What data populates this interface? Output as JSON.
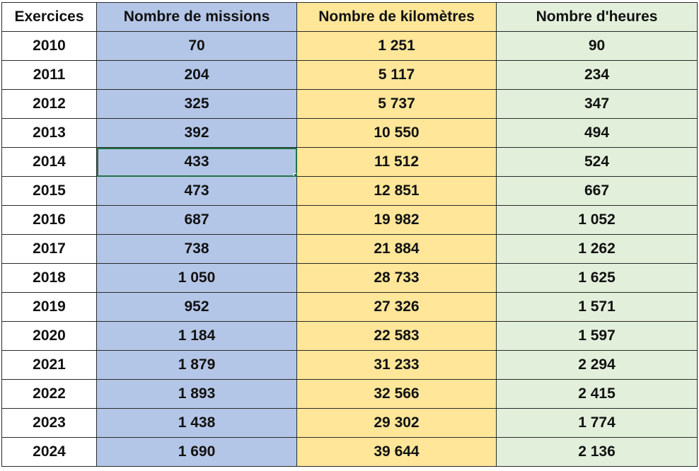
{
  "colors": {
    "missions_fill": "#b4c6e7",
    "km_fill": "#ffe699",
    "hours_fill": "#e2efda",
    "selection_border": "#217346"
  },
  "table": {
    "headers": [
      "Exercices",
      "Nombre de missions",
      "Nombre de kilomètres",
      "Nombre d'heures"
    ],
    "selected_cell": {
      "row": 4,
      "column": "missions"
    },
    "rows": [
      {
        "year": "2010",
        "missions": "70",
        "km": "1 251",
        "hours": "90"
      },
      {
        "year": "2011",
        "missions": "204",
        "km": "5 117",
        "hours": "234"
      },
      {
        "year": "2012",
        "missions": "325",
        "km": "5 737",
        "hours": "347"
      },
      {
        "year": "2013",
        "missions": "392",
        "km": "10 550",
        "hours": "494"
      },
      {
        "year": "2014",
        "missions": "433",
        "km": "11 512",
        "hours": "524"
      },
      {
        "year": "2015",
        "missions": "473",
        "km": "12 851",
        "hours": "667"
      },
      {
        "year": "2016",
        "missions": "687",
        "km": "19 982",
        "hours": "1 052"
      },
      {
        "year": "2017",
        "missions": "738",
        "km": "21 884",
        "hours": "1 262"
      },
      {
        "year": "2018",
        "missions": "1 050",
        "km": "28 733",
        "hours": "1 625"
      },
      {
        "year": "2019",
        "missions": "952",
        "km": "27 326",
        "hours": "1 571"
      },
      {
        "year": "2020",
        "missions": "1 184",
        "km": "22 583",
        "hours": "1 597"
      },
      {
        "year": "2021",
        "missions": "1 879",
        "km": "31 233",
        "hours": "2 294"
      },
      {
        "year": "2022",
        "missions": "1 893",
        "km": "32 566",
        "hours": "2 415"
      },
      {
        "year": "2023",
        "missions": "1 438",
        "km": "29 302",
        "hours": "1 774"
      },
      {
        "year": "2024",
        "missions": "1 690",
        "km": "39 644",
        "hours": "2 136"
      }
    ]
  }
}
